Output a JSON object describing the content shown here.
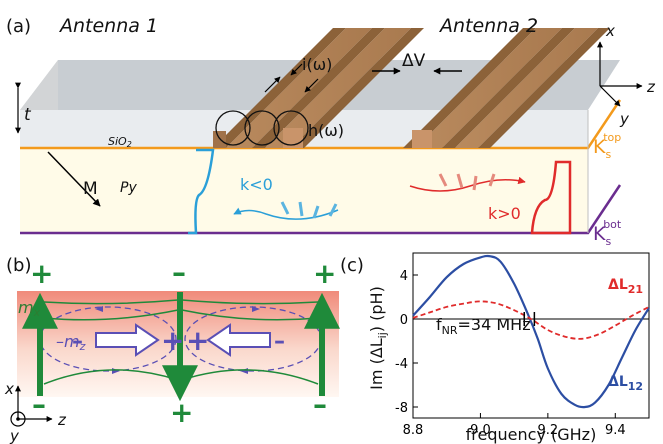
{
  "panel_a": {
    "label": "(a)",
    "antenna1": "Antenna 1",
    "antenna2": "Antenna 2",
    "current": "i(ω)",
    "field": "h(ω)",
    "voltage": "ΔV",
    "thickness": "t",
    "magnetization": "M",
    "oxide": "SiO",
    "oxide_sub": "2",
    "ferromagnet": "Py",
    "k_neg": "k<0",
    "k_pos": "k>0",
    "ks_top_main": "K",
    "ks_top_sub": "s",
    "ks_top_sup": "top",
    "ks_bot_main": "K",
    "ks_bot_sub": "s",
    "ks_bot_sup": "bot",
    "axes": {
      "x": "x",
      "y": "y",
      "z": "z"
    },
    "colors": {
      "top_interface": "#f39a1c",
      "bottom_interface": "#6a2d8f",
      "k_neg": "#2a9fd8",
      "k_pos": "#e02b2b"
    }
  },
  "panel_b": {
    "label": "(b)",
    "mx_main": "m",
    "mx_sub": "x",
    "mz_main": "m",
    "mz_sub": "z",
    "plus": "+",
    "minus": "–",
    "axes": {
      "x": "x",
      "y": "y",
      "z": "z"
    }
  },
  "panel_c": {
    "label": "(c)",
    "ylabel": "Im (ΔL",
    "ylabel_sub": "ij",
    "ylabel_end": ") (pH)",
    "xlabel": "frequency (GHz)",
    "annotation_main": "f",
    "annotation_sub": "NR",
    "annotation_rest": "=34 MHz",
    "series_l21_main": "ΔL",
    "series_l21_sub": "21",
    "series_l12_main": "ΔL",
    "series_l12_sub": "12"
  },
  "chart_data": {
    "type": "line",
    "xlabel": "frequency (GHz)",
    "ylabel": "Im (ΔLij) (pH)",
    "xlim": [
      8.8,
      9.5
    ],
    "ylim": [
      -9,
      6
    ],
    "xticks": [
      "8.8",
      "9.0",
      "9.2",
      "9.4"
    ],
    "yticks": [
      "4",
      "0",
      "-4",
      "-8"
    ],
    "series": [
      {
        "name": "ΔL12",
        "color": "#2c4ea3",
        "style": "solid",
        "x": [
          8.8,
          8.85,
          8.9,
          8.95,
          9.0,
          9.03,
          9.06,
          9.1,
          9.14,
          9.17,
          9.2,
          9.24,
          9.28,
          9.31,
          9.34,
          9.38,
          9.42,
          9.46,
          9.5
        ],
        "y": [
          0.3,
          2.0,
          3.8,
          5.0,
          5.6,
          5.7,
          5.2,
          3.2,
          0.5,
          -1.8,
          -4.5,
          -6.8,
          -7.8,
          -8.0,
          -7.6,
          -6.0,
          -3.5,
          -1.0,
          1.0
        ]
      },
      {
        "name": "ΔL21",
        "color": "#e02b2b",
        "style": "dashed",
        "x": [
          8.8,
          8.85,
          8.9,
          8.95,
          9.0,
          9.05,
          9.1,
          9.15,
          9.2,
          9.25,
          9.3,
          9.35,
          9.4,
          9.45,
          9.5
        ],
        "y": [
          0.1,
          0.6,
          1.1,
          1.4,
          1.6,
          1.4,
          0.8,
          0.0,
          -1.0,
          -1.6,
          -1.8,
          -1.4,
          -0.6,
          0.3,
          1.1
        ]
      }
    ],
    "markers": [
      9.13,
      9.16
    ]
  }
}
